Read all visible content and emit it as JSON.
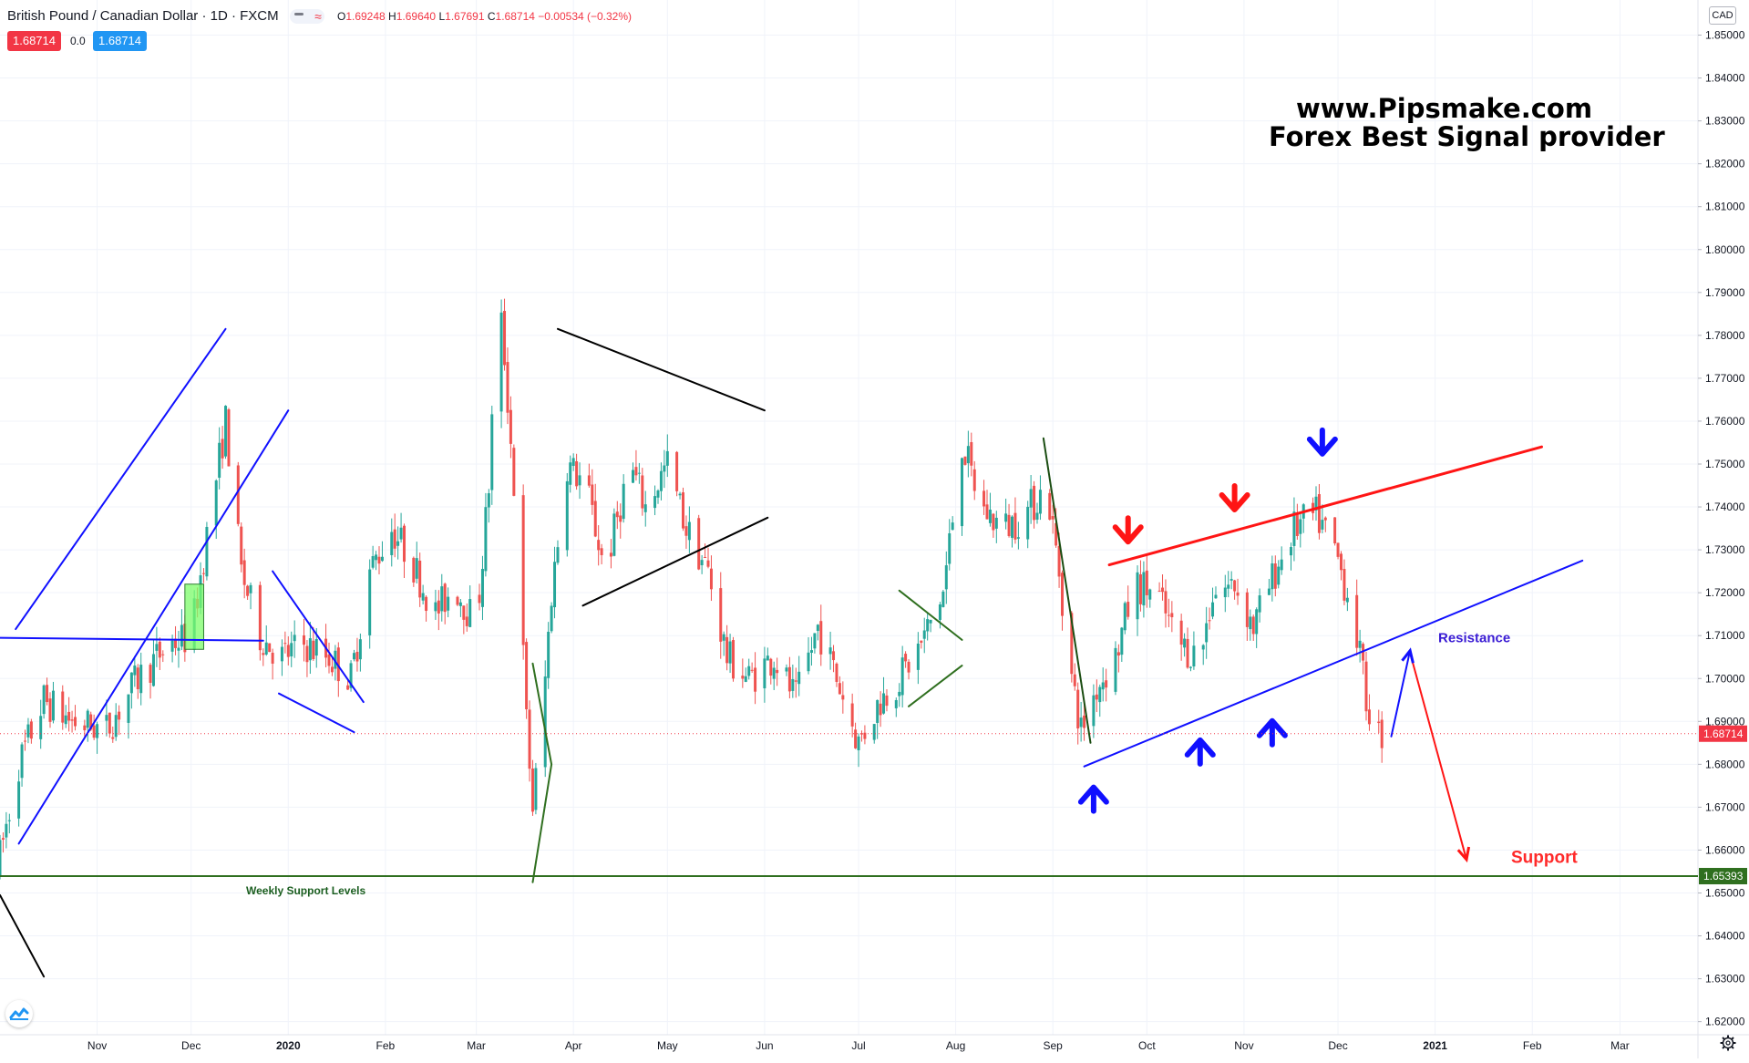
{
  "header": {
    "symbol": "British Pound / Canadian Dollar · 1D · FXCM",
    "ohlc": {
      "o": "1.69248",
      "h": "1.69640",
      "l": "1.67691",
      "c": "1.68714",
      "change": "−0.00534 (−0.32%)"
    },
    "bid": "1.68714",
    "spread": "0.0",
    "ask": "1.68714",
    "currency": "CAD"
  },
  "watermark": {
    "line1": "www.Pipsmake.com",
    "line2": "Forex Best Signal provider"
  },
  "colors": {
    "up": "#26a69a",
    "down": "#ef5350",
    "blue_line": "#1010ff",
    "red_line": "#ff1515",
    "green_line": "#2f6f1f",
    "black_line": "#000000",
    "grid": "#f0f3fa",
    "axis_text": "#131722",
    "current_price": "#f23645"
  },
  "annotations": {
    "weekly_support": "Weekly Support Levels",
    "resistance": "Resistance",
    "support": "Support"
  },
  "chart_data": {
    "type": "candlestick",
    "title": "British Pound / Canadian Dollar · 1D · FXCM",
    "ylim": [
      1.617,
      1.856
    ],
    "y_ticks": [
      "1.85000",
      "1.84000",
      "1.83000",
      "1.82000",
      "1.81000",
      "1.80000",
      "1.79000",
      "1.78000",
      "1.77000",
      "1.76000",
      "1.75000",
      "1.74000",
      "1.73000",
      "1.72000",
      "1.71000",
      "1.70000",
      "1.69000",
      "1.68000",
      "1.67000",
      "1.66000",
      "1.65000",
      "1.64000",
      "1.63000",
      "1.62000"
    ],
    "x_ticks": [
      "Nov",
      "Dec",
      "2020",
      "Feb",
      "Mar",
      "Apr",
      "May",
      "Jun",
      "Jul",
      "Aug",
      "Sep",
      "Oct",
      "Nov",
      "Dec",
      "2021",
      "Feb",
      "Mar"
    ],
    "x_start": "2019-10-01",
    "x_end": "2021-03-25",
    "grid": true,
    "current_price": 1.68714,
    "support_level": 1.65393,
    "price_labels": [
      "1.68714",
      "1.65393"
    ],
    "anchors": [
      [
        "2019-10-01",
        1.655
      ],
      [
        "2019-10-08",
        1.68
      ],
      [
        "2019-10-16",
        1.695
      ],
      [
        "2019-10-25",
        1.69
      ],
      [
        "2019-11-05",
        1.688
      ],
      [
        "2019-11-15",
        1.7
      ],
      [
        "2019-11-25",
        1.708
      ],
      [
        "2019-12-02",
        1.71
      ],
      [
        "2019-12-08",
        1.738
      ],
      [
        "2019-12-13",
        1.76
      ],
      [
        "2019-12-18",
        1.725
      ],
      [
        "2019-12-24",
        1.71
      ],
      [
        "2019-12-31",
        1.705
      ],
      [
        "2020-01-07",
        1.708
      ],
      [
        "2020-01-15",
        1.705
      ],
      [
        "2020-01-22",
        1.7
      ],
      [
        "2020-01-28",
        1.725
      ],
      [
        "2020-02-04",
        1.735
      ],
      [
        "2020-02-10",
        1.728
      ],
      [
        "2020-02-18",
        1.715
      ],
      [
        "2020-02-24",
        1.722
      ],
      [
        "2020-03-02",
        1.712
      ],
      [
        "2020-03-06",
        1.745
      ],
      [
        "2020-03-09",
        1.79
      ],
      [
        "2020-03-11",
        1.775
      ],
      [
        "2020-03-15",
        1.735
      ],
      [
        "2020-03-18",
        1.69
      ],
      [
        "2020-03-20",
        1.67
      ],
      [
        "2020-03-23",
        1.69
      ],
      [
        "2020-03-26",
        1.72
      ],
      [
        "2020-03-31",
        1.75
      ],
      [
        "2020-04-06",
        1.745
      ],
      [
        "2020-04-12",
        1.725
      ],
      [
        "2020-04-20",
        1.75
      ],
      [
        "2020-04-25",
        1.74
      ],
      [
        "2020-05-02",
        1.75
      ],
      [
        "2020-05-08",
        1.735
      ],
      [
        "2020-05-15",
        1.725
      ],
      [
        "2020-05-21",
        1.705
      ],
      [
        "2020-05-28",
        1.7
      ],
      [
        "2020-06-05",
        1.705
      ],
      [
        "2020-06-12",
        1.695
      ],
      [
        "2020-06-19",
        1.712
      ],
      [
        "2020-06-26",
        1.698
      ],
      [
        "2020-07-02",
        1.685
      ],
      [
        "2020-07-09",
        1.695
      ],
      [
        "2020-07-15",
        1.7
      ],
      [
        "2020-07-22",
        1.708
      ],
      [
        "2020-07-29",
        1.72
      ],
      [
        "2020-08-04",
        1.755
      ],
      [
        "2020-08-10",
        1.74
      ],
      [
        "2020-08-17",
        1.735
      ],
      [
        "2020-08-24",
        1.738
      ],
      [
        "2020-08-31",
        1.745
      ],
      [
        "2020-09-04",
        1.725
      ],
      [
        "2020-09-08",
        1.7
      ],
      [
        "2020-09-11",
        1.688
      ],
      [
        "2020-09-16",
        1.698
      ],
      [
        "2020-09-22",
        1.705
      ],
      [
        "2020-09-28",
        1.722
      ],
      [
        "2020-10-05",
        1.72
      ],
      [
        "2020-10-12",
        1.708
      ],
      [
        "2020-10-19",
        1.705
      ],
      [
        "2020-10-23",
        1.72
      ],
      [
        "2020-10-30",
        1.722
      ],
      [
        "2020-11-05",
        1.712
      ],
      [
        "2020-11-12",
        1.725
      ],
      [
        "2020-11-18",
        1.735
      ],
      [
        "2020-11-25",
        1.738
      ],
      [
        "2020-12-01",
        1.73
      ],
      [
        "2020-12-07",
        1.715
      ],
      [
        "2020-12-11",
        1.695
      ],
      [
        "2020-12-15",
        1.687
      ]
    ],
    "drawings": [
      {
        "kind": "line",
        "color": "blue",
        "points": [
          [
            "2019-10-06",
            1.7115
          ],
          [
            "2019-12-12",
            1.7815
          ]
        ]
      },
      {
        "kind": "line",
        "color": "blue",
        "points": [
          [
            "2019-10-07",
            1.6615
          ],
          [
            "2020-01-01",
            1.7625
          ]
        ]
      },
      {
        "kind": "line",
        "color": "blue",
        "points": [
          [
            "2019-10-01",
            1.7095
          ],
          [
            "2019-12-24",
            1.7088
          ]
        ]
      },
      {
        "kind": "line",
        "color": "blue",
        "points": [
          [
            "2019-12-27",
            1.725
          ],
          [
            "2020-01-25",
            1.6945
          ]
        ]
      },
      {
        "kind": "line",
        "color": "blue",
        "points": [
          [
            "2019-12-29",
            1.6965
          ],
          [
            "2020-01-22",
            1.6875
          ]
        ]
      },
      {
        "kind": "line",
        "color": "black",
        "points": [
          [
            "2019-10-01",
            1.6495
          ],
          [
            "2019-10-15",
            1.6305
          ]
        ]
      },
      {
        "kind": "line",
        "color": "black",
        "points": [
          [
            "2020-03-27",
            1.7815
          ],
          [
            "2020-06-01",
            1.7625
          ]
        ]
      },
      {
        "kind": "line",
        "color": "black",
        "points": [
          [
            "2020-04-04",
            1.717
          ],
          [
            "2020-06-02",
            1.7375
          ]
        ]
      },
      {
        "kind": "polyline",
        "color": "green",
        "points": [
          [
            "2020-03-19",
            1.7035
          ],
          [
            "2020-03-25",
            1.68
          ],
          [
            "2020-03-19",
            1.6525
          ]
        ]
      },
      {
        "kind": "polyline",
        "color": "green",
        "points": [
          [
            "2020-07-14",
            1.7205
          ],
          [
            "2020-08-03",
            1.709
          ]
        ]
      },
      {
        "kind": "polyline",
        "color": "green",
        "points": [
          [
            "2020-07-17",
            1.6935
          ],
          [
            "2020-08-03",
            1.703
          ]
        ]
      },
      {
        "kind": "line",
        "color": "darkgreen",
        "points": [
          [
            "2020-08-29",
            1.756
          ],
          [
            "2020-09-13",
            1.685
          ]
        ]
      },
      {
        "kind": "line",
        "color": "red",
        "points": [
          [
            "2020-09-19",
            1.7265
          ],
          [
            "2021-02-04",
            1.754
          ]
        ]
      },
      {
        "kind": "line",
        "color": "blue",
        "points": [
          [
            "2020-09-11",
            1.6795
          ],
          [
            "2021-02-17",
            1.7275
          ]
        ]
      },
      {
        "kind": "line",
        "color": "blue",
        "points": [
          [
            "2020-12-18",
            1.6865
          ],
          [
            "2020-12-24",
            1.7065
          ]
        ]
      },
      {
        "kind": "line",
        "color": "red",
        "points": [
          [
            "2020-12-24",
            1.706
          ],
          [
            "2021-01-11",
            1.6578
          ]
        ]
      },
      {
        "kind": "hline",
        "color": "green",
        "price": 1.65393
      }
    ],
    "markers": [
      {
        "dir": "down",
        "color": "red",
        "date": "2020-09-25",
        "price": 1.734
      },
      {
        "dir": "down",
        "color": "red",
        "date": "2020-10-29",
        "price": 1.7415
      },
      {
        "dir": "down",
        "color": "blue",
        "date": "2020-11-26",
        "price": 1.7545
      },
      {
        "dir": "up",
        "color": "blue",
        "date": "2020-09-14",
        "price": 1.6725
      },
      {
        "dir": "up",
        "color": "blue",
        "date": "2020-10-18",
        "price": 1.6835
      },
      {
        "dir": "up",
        "color": "blue",
        "date": "2020-11-10",
        "price": 1.688
      }
    ]
  }
}
